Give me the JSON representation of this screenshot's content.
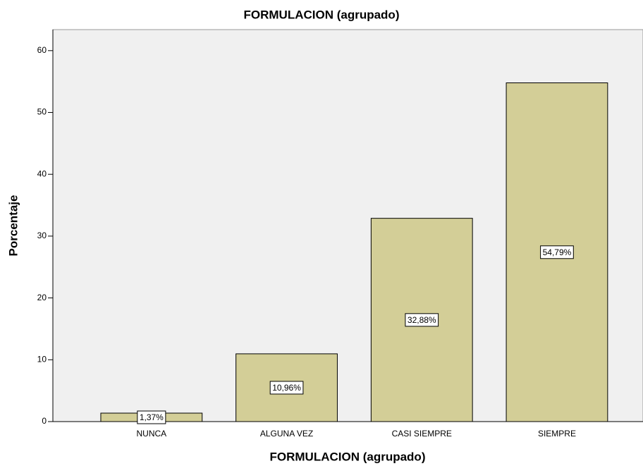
{
  "chart_data": {
    "type": "bar",
    "title": "FORMULACION (agrupado)",
    "x_label": "FORMULACION (agrupado)",
    "y_label": "Porcentaje",
    "categories": [
      "NUNCA",
      "ALGUNA VEZ",
      "CASI SIEMPRE",
      "SIEMPRE"
    ],
    "values": [
      1.37,
      10.96,
      32.88,
      54.79
    ],
    "value_labels": [
      "1,37%",
      "10,96%",
      "32,88%",
      "54,79%"
    ],
    "color": "#d3ce97",
    "ylim": [
      0,
      63.4
    ],
    "yticks": [
      0,
      10,
      20,
      30,
      40,
      50,
      60
    ],
    "grid": false
  }
}
